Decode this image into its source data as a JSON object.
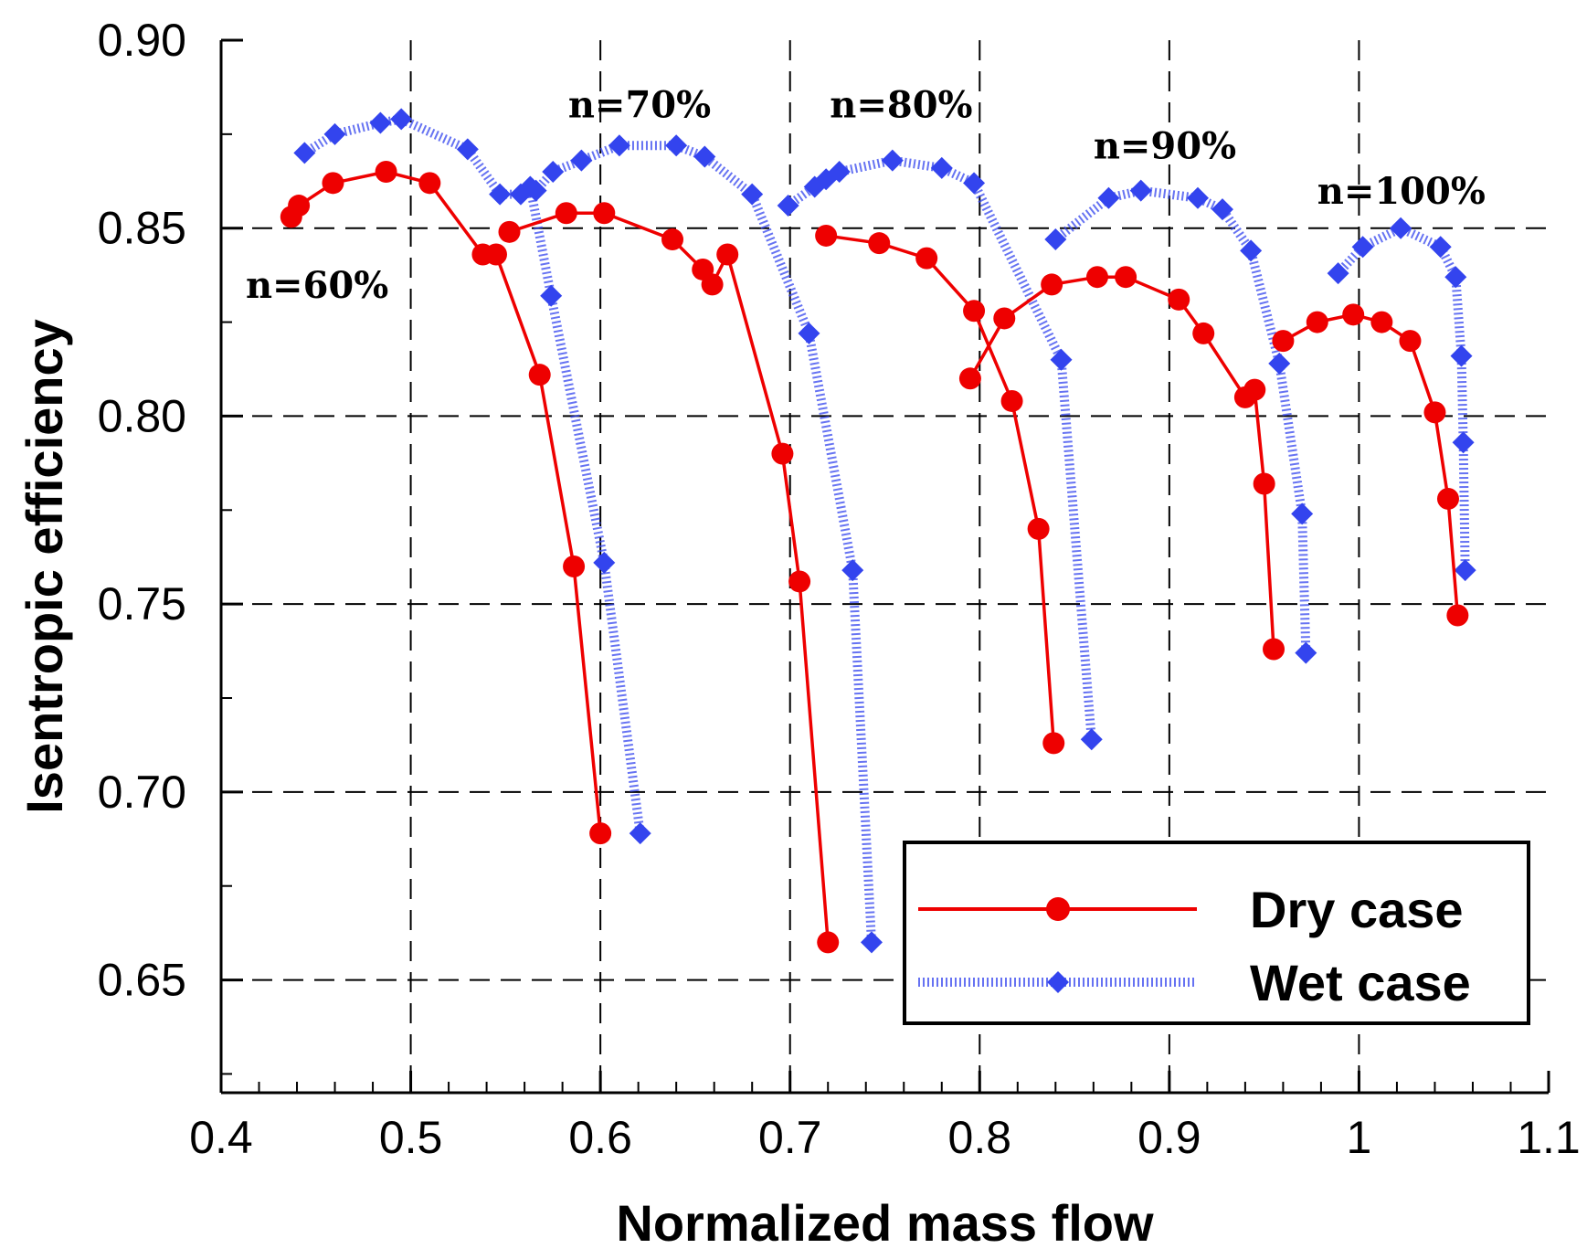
{
  "chart_data": {
    "type": "line",
    "title": "",
    "xlabel": "Normalized mass flow",
    "ylabel": "Isentropic efficiency",
    "xlim": [
      0.4,
      1.1
    ],
    "ylim": [
      0.62,
      0.9
    ],
    "xticks": [
      0.4,
      0.5,
      0.6,
      0.7,
      0.8,
      0.9,
      1.0,
      1.1
    ],
    "xtick_labels": [
      "0.4",
      "0.5",
      "0.6",
      "0.7",
      "0.8",
      "0.9",
      "1",
      "1.1"
    ],
    "yticks": [
      0.65,
      0.7,
      0.75,
      0.8,
      0.85,
      0.9
    ],
    "ytick_labels": [
      "0.65",
      "0.70",
      "0.75",
      "0.80",
      "0.85",
      "0.90"
    ],
    "grid": "dashed",
    "legend_position": "bottom-right",
    "legend": [
      "Dry case",
      "Wet case"
    ],
    "colors": {
      "dry": "#ee0000",
      "wet": "#3344ee"
    },
    "annotations": [
      "n=60%",
      "n=70%",
      "n=80%",
      "n=90%",
      "n=100%"
    ],
    "series": [
      {
        "name": "Dry case",
        "speed": "n=60%",
        "style": "solid-circle",
        "x": [
          0.437,
          0.441,
          0.459,
          0.487,
          0.51,
          0.538,
          0.545,
          0.568,
          0.586,
          0.6
        ],
        "y": [
          0.853,
          0.856,
          0.862,
          0.865,
          0.862,
          0.843,
          0.843,
          0.811,
          0.76,
          0.689
        ]
      },
      {
        "name": "Wet case",
        "speed": "n=60%",
        "style": "dotted-diamond",
        "x": [
          0.444,
          0.46,
          0.484,
          0.495,
          0.53,
          0.547,
          0.558,
          0.563,
          0.574,
          0.602,
          0.621
        ],
        "y": [
          0.87,
          0.875,
          0.878,
          0.879,
          0.871,
          0.859,
          0.859,
          0.861,
          0.832,
          0.761,
          0.689
        ]
      },
      {
        "name": "Dry case",
        "speed": "n=70%",
        "style": "solid-circle",
        "x": [
          0.552,
          0.582,
          0.602,
          0.638,
          0.654,
          0.659,
          0.667,
          0.696,
          0.705,
          0.72
        ],
        "y": [
          0.849,
          0.854,
          0.854,
          0.847,
          0.839,
          0.835,
          0.843,
          0.79,
          0.756,
          0.66
        ]
      },
      {
        "name": "Wet case",
        "speed": "n=70%",
        "style": "dotted-diamond",
        "x": [
          0.566,
          0.575,
          0.59,
          0.61,
          0.64,
          0.655,
          0.68,
          0.71,
          0.733,
          0.743
        ],
        "y": [
          0.86,
          0.865,
          0.868,
          0.872,
          0.872,
          0.869,
          0.859,
          0.822,
          0.759,
          0.66
        ]
      },
      {
        "name": "Dry case",
        "speed": "n=80%",
        "style": "solid-circle",
        "x": [
          0.719,
          0.747,
          0.772,
          0.797,
          0.817,
          0.831,
          0.839
        ],
        "y": [
          0.848,
          0.846,
          0.842,
          0.828,
          0.804,
          0.77,
          0.713
        ]
      },
      {
        "name": "Wet case",
        "speed": "n=80%",
        "style": "dotted-diamond",
        "x": [
          0.699,
          0.713,
          0.719,
          0.726,
          0.754,
          0.78,
          0.797,
          0.843,
          0.859
        ],
        "y": [
          0.856,
          0.861,
          0.863,
          0.865,
          0.868,
          0.866,
          0.862,
          0.815,
          0.714
        ]
      },
      {
        "name": "Dry case",
        "speed": "n=90%",
        "style": "solid-circle",
        "x": [
          0.795,
          0.813,
          0.838,
          0.862,
          0.877,
          0.905,
          0.918,
          0.94,
          0.945,
          0.95,
          0.955
        ],
        "y": [
          0.81,
          0.826,
          0.835,
          0.837,
          0.837,
          0.831,
          0.822,
          0.805,
          0.807,
          0.782,
          0.738
        ]
      },
      {
        "name": "Wet case",
        "speed": "n=90%",
        "style": "dotted-diamond",
        "x": [
          0.84,
          0.868,
          0.885,
          0.915,
          0.928,
          0.943,
          0.958,
          0.97,
          0.972
        ],
        "y": [
          0.847,
          0.858,
          0.86,
          0.858,
          0.855,
          0.844,
          0.814,
          0.774,
          0.737
        ]
      },
      {
        "name": "Dry case",
        "speed": "n=100%",
        "style": "solid-circle",
        "x": [
          0.96,
          0.978,
          0.997,
          1.012,
          1.027,
          1.04,
          1.047,
          1.052
        ],
        "y": [
          0.82,
          0.825,
          0.827,
          0.825,
          0.82,
          0.801,
          0.778,
          0.747
        ]
      },
      {
        "name": "Wet case",
        "speed": "n=100%",
        "style": "dotted-diamond",
        "x": [
          0.989,
          1.002,
          1.022,
          1.043,
          1.051,
          1.054,
          1.055,
          1.056
        ],
        "y": [
          0.838,
          0.845,
          0.85,
          0.845,
          0.837,
          0.816,
          0.793,
          0.759
        ]
      }
    ]
  }
}
